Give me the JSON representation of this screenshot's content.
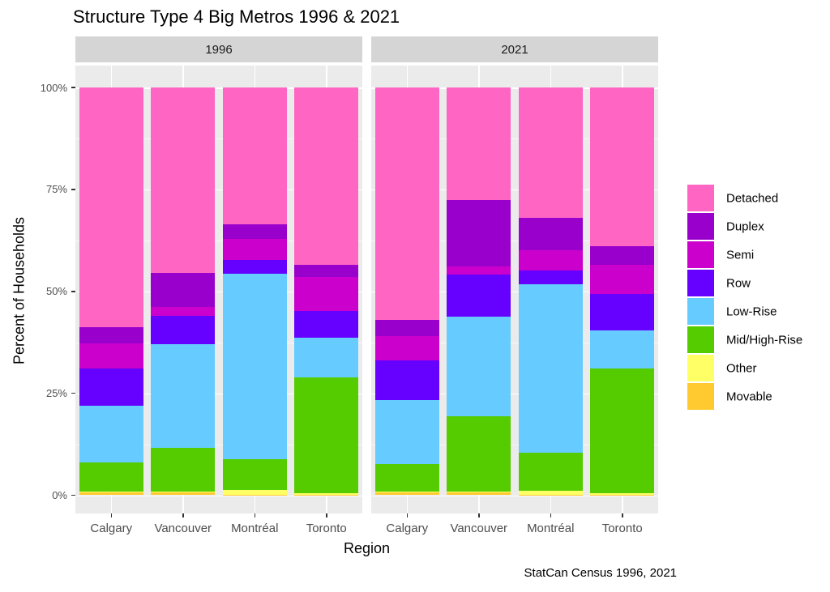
{
  "title": "Structure Type 4 Big Metros 1996 & 2021",
  "caption": "StatCan Census 1996, 2021",
  "x_axis": {
    "title": "Region",
    "tick_labels": [
      "Calgary",
      "Vancouver",
      "Montréal",
      "Toronto"
    ]
  },
  "y_axis": {
    "title": "Percent of Households",
    "tick_labels": [
      "0%",
      "25%",
      "50%",
      "75%",
      "100%"
    ],
    "tick_values": [
      0,
      25,
      50,
      75,
      100
    ]
  },
  "facets": [
    "1996",
    "2021"
  ],
  "legend": {
    "items": [
      {
        "label": "Detached",
        "color": "#FF66C4"
      },
      {
        "label": "Duplex",
        "color": "#9900CC"
      },
      {
        "label": "Semi",
        "color": "#CC00CC"
      },
      {
        "label": "Row",
        "color": "#6600FF"
      },
      {
        "label": "Low-Rise",
        "color": "#66CCFF"
      },
      {
        "label": "Mid/High-Rise",
        "color": "#55CC00"
      },
      {
        "label": "Other",
        "color": "#FFFF66"
      },
      {
        "label": "Movable",
        "color": "#FFC930"
      }
    ]
  },
  "theme_colors": {
    "panel_background": "#EBEBEB",
    "strip_background": "#D5D5D5",
    "gridline": "#FFFFFF",
    "tick_text": "#4D4D4D"
  },
  "chart_data": {
    "type": "bar",
    "stacked": true,
    "y_unit": "percent",
    "ylim": [
      0,
      100
    ],
    "grid": true,
    "legend_position": "right",
    "title": "Structure Type 4 Big Metros 1996 & 2021",
    "xlabel": "Region",
    "ylabel": "Percent of Households",
    "facets": [
      "1996",
      "2021"
    ],
    "categories": [
      "Calgary",
      "Vancouver",
      "Montréal",
      "Toronto"
    ],
    "stack_order_bottom_to_top": [
      "Movable",
      "Other",
      "Mid/High-Rise",
      "Low-Rise",
      "Row",
      "Semi",
      "Duplex",
      "Detached"
    ],
    "series": [
      {
        "name": "Detached",
        "color": "#FF66C4",
        "values": {
          "1996": [
            58.8,
            45.5,
            33.5,
            43.4
          ],
          "2021": [
            57.0,
            27.6,
            31.9,
            39.0
          ]
        }
      },
      {
        "name": "Duplex",
        "color": "#9900CC",
        "values": {
          "1996": [
            3.9,
            8.3,
            3.7,
            3.0
          ],
          "2021": [
            3.9,
            16.3,
            8.0,
            4.4
          ]
        }
      },
      {
        "name": "Semi",
        "color": "#CC00CC",
        "values": {
          "1996": [
            6.3,
            2.2,
            5.2,
            8.4
          ],
          "2021": [
            6.1,
            1.9,
            4.9,
            7.3
          ]
        }
      },
      {
        "name": "Row",
        "color": "#6600FF",
        "values": {
          "1996": [
            9.0,
            6.9,
            3.3,
            6.6
          ],
          "2021": [
            9.6,
            10.5,
            3.4,
            8.9
          ]
        }
      },
      {
        "name": "Low-Rise",
        "color": "#66CCFF",
        "values": {
          "1996": [
            13.9,
            25.5,
            45.5,
            9.8
          ],
          "2021": [
            15.8,
            24.3,
            41.3,
            9.3
          ]
        }
      },
      {
        "name": "Mid/High-Rise",
        "color": "#55CC00",
        "values": {
          "1996": [
            7.2,
            10.8,
            7.6,
            28.4
          ],
          "2021": [
            6.8,
            18.6,
            9.5,
            30.6
          ]
        }
      },
      {
        "name": "Other",
        "color": "#FFFF66",
        "values": {
          "1996": [
            0.2,
            0.2,
            1.1,
            0.3
          ],
          "2021": [
            0.2,
            0.2,
            0.9,
            0.4
          ]
        }
      },
      {
        "name": "Movable",
        "color": "#FFC930",
        "values": {
          "1996": [
            0.7,
            0.6,
            0.1,
            0.1
          ],
          "2021": [
            0.6,
            0.6,
            0.1,
            0.1
          ]
        }
      }
    ]
  }
}
